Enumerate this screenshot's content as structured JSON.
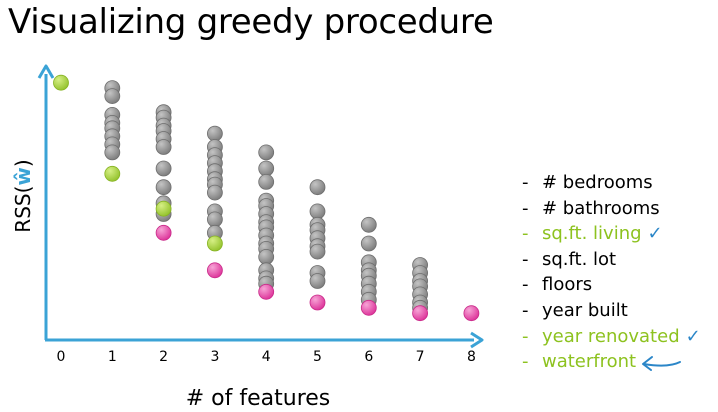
{
  "page": {
    "title": "Visualizing greedy procedure"
  },
  "colors": {
    "axis": "#3ba3d6",
    "gray_point": "#8a8a8a",
    "green_point": "#a6cf3c",
    "pink_point": "#ea4aa9",
    "green_text": "#8dc21f",
    "check": "#2b86c8"
  },
  "chart_data": {
    "type": "scatter",
    "title": "",
    "xlabel": "# of features",
    "ylabel_prefix": "RSS(",
    "ylabel_symbol": "ŵ",
    "ylabel_suffix": ")",
    "x_ticks": [
      "0",
      "1",
      "2",
      "3",
      "4",
      "5",
      "6",
      "7",
      "8"
    ],
    "xlim": [
      0,
      8
    ],
    "ylim": [
      0,
      100
    ],
    "grid": false,
    "y_tick_labels": false,
    "series": [
      {
        "role": "gray",
        "points": [
          {
            "x": 1,
            "y": 94
          },
          {
            "x": 1,
            "y": 91
          },
          {
            "x": 1,
            "y": 84
          },
          {
            "x": 1,
            "y": 81
          },
          {
            "x": 1,
            "y": 79
          },
          {
            "x": 1,
            "y": 76
          },
          {
            "x": 1,
            "y": 73
          },
          {
            "x": 1,
            "y": 70
          },
          {
            "x": 2,
            "y": 85
          },
          {
            "x": 2,
            "y": 83
          },
          {
            "x": 2,
            "y": 80
          },
          {
            "x": 2,
            "y": 78
          },
          {
            "x": 2,
            "y": 75
          },
          {
            "x": 2,
            "y": 72
          },
          {
            "x": 2,
            "y": 64
          },
          {
            "x": 2,
            "y": 57
          },
          {
            "x": 2,
            "y": 51
          },
          {
            "x": 2,
            "y": 47
          },
          {
            "x": 3,
            "y": 77
          },
          {
            "x": 3,
            "y": 72
          },
          {
            "x": 3,
            "y": 69
          },
          {
            "x": 3,
            "y": 66
          },
          {
            "x": 3,
            "y": 63
          },
          {
            "x": 3,
            "y": 60
          },
          {
            "x": 3,
            "y": 58
          },
          {
            "x": 3,
            "y": 55
          },
          {
            "x": 3,
            "y": 48
          },
          {
            "x": 3,
            "y": 45
          },
          {
            "x": 3,
            "y": 40
          },
          {
            "x": 4,
            "y": 70
          },
          {
            "x": 4,
            "y": 64
          },
          {
            "x": 4,
            "y": 59
          },
          {
            "x": 4,
            "y": 52
          },
          {
            "x": 4,
            "y": 50
          },
          {
            "x": 4,
            "y": 47
          },
          {
            "x": 4,
            "y": 44
          },
          {
            "x": 4,
            "y": 42
          },
          {
            "x": 4,
            "y": 39
          },
          {
            "x": 4,
            "y": 36
          },
          {
            "x": 4,
            "y": 34
          },
          {
            "x": 4,
            "y": 31
          },
          {
            "x": 4,
            "y": 26
          },
          {
            "x": 4,
            "y": 23
          },
          {
            "x": 4,
            "y": 21
          },
          {
            "x": 5,
            "y": 57
          },
          {
            "x": 5,
            "y": 48
          },
          {
            "x": 5,
            "y": 43
          },
          {
            "x": 5,
            "y": 41
          },
          {
            "x": 5,
            "y": 38
          },
          {
            "x": 5,
            "y": 35
          },
          {
            "x": 5,
            "y": 33
          },
          {
            "x": 5,
            "y": 25
          },
          {
            "x": 5,
            "y": 22
          },
          {
            "x": 6,
            "y": 43
          },
          {
            "x": 6,
            "y": 36
          },
          {
            "x": 6,
            "y": 29
          },
          {
            "x": 6,
            "y": 26
          },
          {
            "x": 6,
            "y": 24
          },
          {
            "x": 6,
            "y": 21
          },
          {
            "x": 6,
            "y": 18
          },
          {
            "x": 6,
            "y": 15
          },
          {
            "x": 7,
            "y": 28
          },
          {
            "x": 7,
            "y": 25
          },
          {
            "x": 7,
            "y": 22
          },
          {
            "x": 7,
            "y": 20
          },
          {
            "x": 7,
            "y": 17
          },
          {
            "x": 7,
            "y": 14
          },
          {
            "x": 7,
            "y": 12
          }
        ]
      },
      {
        "role": "green",
        "points": [
          {
            "x": 0,
            "y": 96
          },
          {
            "x": 1,
            "y": 62
          },
          {
            "x": 2,
            "y": 49
          },
          {
            "x": 3,
            "y": 36
          }
        ]
      },
      {
        "role": "pink",
        "points": [
          {
            "x": 2,
            "y": 40
          },
          {
            "x": 3,
            "y": 26
          },
          {
            "x": 4,
            "y": 18
          },
          {
            "x": 5,
            "y": 14
          },
          {
            "x": 6,
            "y": 12
          },
          {
            "x": 7,
            "y": 10
          },
          {
            "x": 8,
            "y": 10
          }
        ]
      }
    ]
  },
  "legend": {
    "items": [
      {
        "dash": "-",
        "label": "# bedrooms",
        "color": "#000000",
        "mark": ""
      },
      {
        "dash": "-",
        "label": "# bathrooms",
        "color": "#000000",
        "mark": ""
      },
      {
        "dash": "-",
        "label": "sq.ft. living",
        "color": "#8dc21f",
        "mark": "✓"
      },
      {
        "dash": "-",
        "label": "sq.ft. lot",
        "color": "#000000",
        "mark": ""
      },
      {
        "dash": "-",
        "label": "floors",
        "color": "#000000",
        "mark": ""
      },
      {
        "dash": "-",
        "label": "year built",
        "color": "#000000",
        "mark": ""
      },
      {
        "dash": "-",
        "label": "year renovated",
        "color": "#8dc21f",
        "mark": "✓"
      },
      {
        "dash": "-",
        "label": "waterfront",
        "color": "#8dc21f",
        "mark": "arrow"
      }
    ]
  }
}
